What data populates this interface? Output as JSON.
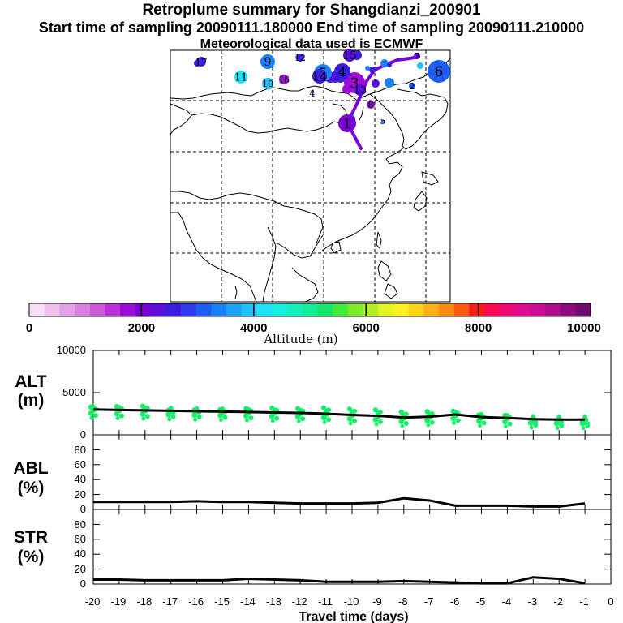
{
  "header": {
    "title": "Retroplume summary for Shangdianzi_200901",
    "sampling_line": "Start time of sampling 20090111.180000     End time of sampling 20090111.210000",
    "met_line": "Meteorological data used is ECMWF"
  },
  "colorbar": {
    "ticks": [
      "0",
      "2000",
      "4000",
      "6000",
      "8000",
      "10000"
    ],
    "label": "Altitude (m)",
    "colors": [
      "#f8ddf6",
      "#efc2ee",
      "#e4a1e8",
      "#d97fe2",
      "#cc5ad8",
      "#b830d6",
      "#9b0cd4",
      "#7a00d8",
      "#5a10dc",
      "#3a1ee0",
      "#2d3af0",
      "#1b5ef5",
      "#1a82f8",
      "#1ba4fa",
      "#1cc4fb",
      "#1de2fb",
      "#13f0e2",
      "#12f0c0",
      "#10f098",
      "#12e868",
      "#40ea38",
      "#7aec2a",
      "#b4ee22",
      "#e4f41e",
      "#fff21a",
      "#ffd414",
      "#ffb012",
      "#ff8a0e",
      "#ff5a10",
      "#ff1a1a",
      "#ff0a50",
      "#f00878",
      "#e20a90",
      "#cc0c96",
      "#ae0c8c",
      "#8c0c80",
      "#700c70"
    ]
  },
  "map": {
    "clusters": [
      {
        "label": "1",
        "color": "#7a00d8"
      },
      {
        "label": "2",
        "color": "#1b5ef5"
      },
      {
        "label": "3",
        "color": "#9b0cd4"
      },
      {
        "label": "4",
        "color": "#3a1ee0"
      },
      {
        "label": "5",
        "color": "#1a82f8"
      },
      {
        "label": "6",
        "color": "#1b5ef5"
      },
      {
        "label": "7",
        "color": "#5a10dc"
      },
      {
        "label": "8",
        "color": "#9b0cd4"
      },
      {
        "label": "9",
        "color": "#1a82f8"
      },
      {
        "label": "10",
        "color": "#1cc4fb"
      },
      {
        "label": "11",
        "color": "#1de2fb"
      },
      {
        "label": "12",
        "color": "#3a1ee0"
      },
      {
        "label": "13",
        "color": "#5a10dc"
      },
      {
        "label": "14",
        "color": "#3a1ee0"
      },
      {
        "label": "15",
        "color": "#5a10dc"
      },
      {
        "label": "16",
        "color": "#9b0cd4"
      },
      {
        "label": "17",
        "color": "#3a1ee0"
      }
    ]
  },
  "chart_data": [
    {
      "type": "line",
      "panel": "ALT",
      "ylabel": "ALT",
      "yunit": "(m)",
      "ylim": [
        0,
        10000
      ],
      "yticks": [
        "10000",
        "5000",
        "0"
      ],
      "x": [
        -20,
        -19,
        -18,
        -17,
        -16,
        -15,
        -14,
        -13,
        -12,
        -11,
        -10,
        -9,
        -8,
        -7,
        -6,
        -5,
        -4,
        -3,
        -2,
        -1
      ],
      "series": [
        {
          "name": "Mean altitude",
          "values": [
            3000,
            2950,
            2900,
            2850,
            2800,
            2750,
            2700,
            2650,
            2600,
            2500,
            2350,
            2250,
            2050,
            2150,
            2400,
            2100,
            2000,
            1850,
            1800,
            1800
          ]
        },
        {
          "name": "Cluster spread",
          "values": [
            3300,
            3350,
            3400,
            2900,
            2950,
            3000,
            3100,
            3150,
            3100,
            3200,
            3050,
            2950,
            2700,
            2750,
            2800,
            2350,
            2300,
            1750,
            1700,
            1600
          ]
        }
      ]
    },
    {
      "type": "line",
      "panel": "ABL",
      "ylabel": "ABL",
      "yunit": "(%)",
      "ylim": [
        0,
        100
      ],
      "yticks": [
        "80",
        "60",
        "40",
        "20",
        "0"
      ],
      "x": [
        -20,
        -19,
        -18,
        -17,
        -16,
        -15,
        -14,
        -13,
        -12,
        -11,
        -10,
        -9,
        -8,
        -7,
        -6,
        -5,
        -4,
        -3,
        -2,
        -1
      ],
      "series": [
        {
          "name": "ABL fraction",
          "values": [
            10,
            10,
            10,
            10,
            11,
            10,
            10,
            9,
            8,
            8,
            8,
            9,
            15,
            12,
            5,
            5,
            5,
            4,
            4,
            8
          ]
        }
      ]
    },
    {
      "type": "line",
      "panel": "STR",
      "ylabel": "STR",
      "yunit": "(%)",
      "ylim": [
        0,
        100
      ],
      "yticks": [
        "80",
        "60",
        "40",
        "20",
        "0"
      ],
      "xlabel": "Travel time (days)",
      "xticks": [
        "-20",
        "-19",
        "-18",
        "-17",
        "-16",
        "-15",
        "-14",
        "-13",
        "-12",
        "-11",
        "-10",
        "-9",
        "-8",
        "-7",
        "-6",
        "-5",
        "-4",
        "-3",
        "-2",
        "-1",
        "0"
      ],
      "x": [
        -20,
        -19,
        -18,
        -17,
        -16,
        -15,
        -14,
        -13,
        -12,
        -11,
        -10,
        -9,
        -8,
        -7,
        -6,
        -5,
        -4,
        -3,
        -2,
        -1
      ],
      "series": [
        {
          "name": "Stratospheric fraction",
          "values": [
            6,
            6,
            5,
            5,
            5,
            5,
            7,
            6,
            5,
            3,
            3,
            3,
            4,
            3,
            2,
            1,
            1,
            9,
            7,
            1
          ]
        }
      ]
    }
  ]
}
